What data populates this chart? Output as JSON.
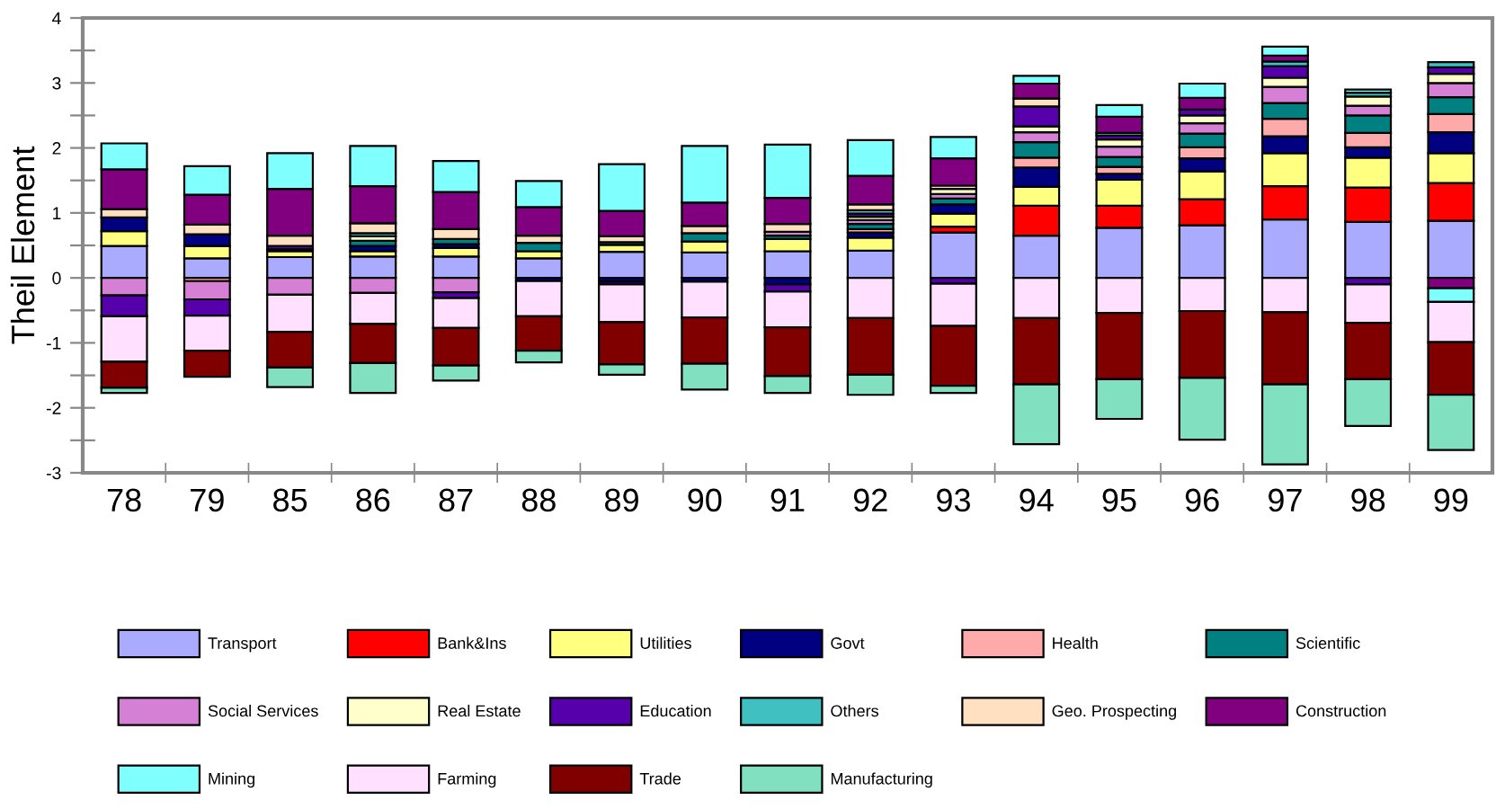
{
  "chart_data": {
    "type": "bar",
    "stacked": true,
    "ylabel": "Theil Element",
    "legend": "bottom",
    "grid": false,
    "categories": [
      "78",
      "79",
      "85",
      "86",
      "87",
      "88",
      "89",
      "90",
      "91",
      "92",
      "93",
      "94",
      "95",
      "96",
      "97",
      "98",
      "99"
    ],
    "ylim": [
      -3,
      4
    ],
    "yticks": [
      -3,
      {
        "value": -2.5,
        "label": null
      },
      -2,
      {
        "value": -1.5,
        "label": null
      },
      -1,
      {
        "value": -0.5,
        "label": null
      },
      0,
      {
        "value": 0.5,
        "label": null
      },
      1,
      {
        "value": 1.5,
        "label": null
      },
      2,
      {
        "value": 2.5,
        "label": null
      },
      3,
      {
        "value": 3.5,
        "label": null
      },
      4
    ],
    "series": [
      {
        "name": "Transport",
        "color": "#aaaaff",
        "values": [
          0.49,
          0.3,
          0.32,
          0.33,
          0.33,
          0.3,
          0.4,
          0.39,
          0.41,
          0.42,
          0.7,
          0.65,
          0.77,
          0.81,
          0.9,
          0.86,
          0.88
        ]
      },
      {
        "name": "Bank&Ins",
        "color": "#ff0000",
        "values": [
          0,
          0,
          0,
          0,
          0,
          0,
          0,
          0,
          0,
          0,
          0.09,
          0.46,
          0.34,
          0.4,
          0.51,
          0.53,
          0.58
        ]
      },
      {
        "name": "Utilities",
        "color": "#ffff80",
        "values": [
          0.23,
          0.19,
          0.09,
          0.08,
          0.13,
          0.11,
          0.11,
          0.17,
          0.19,
          0.2,
          0.2,
          0.29,
          0.4,
          0.43,
          0.51,
          0.46,
          0.46
        ]
      },
      {
        "name": "Govt",
        "color": "#000080",
        "values": [
          0.21,
          0.18,
          0.03,
          0.08,
          0.06,
          -0.05,
          -0.06,
          -0.06,
          -0.1,
          0.08,
          0.14,
          0.3,
          0.09,
          0.2,
          0.26,
          0.16,
          0.32
        ]
      },
      {
        "name": "Health",
        "color": "#ffaaaa",
        "values": [
          null,
          -0.05,
          0,
          0,
          0,
          0,
          0,
          0,
          0,
          0.05,
          0,
          0.15,
          0.11,
          0.17,
          0.27,
          0.22,
          0.28
        ]
      },
      {
        "name": "Scientific",
        "color": "#008080",
        "values": [
          0,
          null,
          null,
          0.08,
          0.08,
          0.13,
          0.04,
          0.13,
          0.05,
          0.08,
          0.09,
          0.24,
          0.15,
          0.21,
          0.24,
          0.27,
          0.26
        ]
      },
      {
        "name": "Social Services",
        "color": "#d580d5",
        "values": [
          -0.27,
          -0.28,
          -0.26,
          -0.23,
          -0.22,
          0,
          0,
          0,
          0.06,
          0.06,
          0.07,
          0.15,
          0.16,
          0.16,
          0.25,
          0.15,
          0.22
        ]
      },
      {
        "name": "Real Estate",
        "color": "#ffffcc",
        "values": [
          0,
          0,
          0,
          0.07,
          0,
          0,
          0,
          0,
          0,
          0.05,
          0.08,
          0.09,
          0.11,
          0.12,
          0.14,
          0.14,
          0.14
        ]
      },
      {
        "name": "Education",
        "color": "#5500aa",
        "values": [
          -0.32,
          -0.25,
          0.05,
          0,
          -0.09,
          0,
          -0.04,
          0,
          -0.11,
          0.05,
          -0.09,
          0.31,
          0.06,
          0.09,
          0.18,
          -0.1,
          0.1
        ]
      },
      {
        "name": "Others",
        "color": "#40c0c0",
        "values": [
          0,
          0,
          0,
          0.05,
          0,
          0,
          null,
          0,
          0,
          0.05,
          0,
          0,
          0.04,
          null,
          0.07,
          0.06,
          0.08
        ]
      },
      {
        "name": "Geo. Prospecting",
        "color": "#ffe0c0",
        "values": [
          0.13,
          0.15,
          0.16,
          0.15,
          0.15,
          0.11,
          0.09,
          0.11,
          0.12,
          0.09,
          0.05,
          0.12,
          0,
          0,
          0,
          0,
          0
        ]
      },
      {
        "name": "Construction",
        "color": "#800080",
        "values": [
          0.61,
          0.46,
          0.72,
          0.57,
          0.57,
          0.44,
          0.39,
          0.36,
          0.4,
          0.44,
          0.42,
          0.23,
          0.25,
          0.18,
          0.09,
          0,
          -0.16
        ]
      },
      {
        "name": "Mining",
        "color": "#80ffff",
        "values": [
          0.4,
          0.44,
          0.55,
          0.62,
          0.48,
          0.4,
          0.72,
          0.87,
          0.82,
          0.55,
          0.33,
          0.12,
          0.18,
          0.22,
          0.14,
          0.05,
          -0.21
        ]
      },
      {
        "name": "Farming",
        "color": "#ffe0ff",
        "values": [
          -0.7,
          -0.54,
          -0.57,
          -0.48,
          -0.46,
          -0.54,
          -0.58,
          -0.55,
          -0.55,
          -0.62,
          -0.65,
          -0.62,
          -0.54,
          -0.51,
          -0.53,
          -0.59,
          -0.62
        ]
      },
      {
        "name": "Trade",
        "color": "#800000",
        "values": [
          -0.4,
          -0.4,
          -0.55,
          -0.6,
          -0.58,
          -0.53,
          -0.65,
          -0.71,
          -0.75,
          -0.87,
          -0.92,
          -1.02,
          -1.02,
          -1.03,
          -1.11,
          -0.87,
          -0.81
        ]
      },
      {
        "name": "Manufacturing",
        "color": "#80e0c0",
        "values": [
          -0.08,
          0,
          -0.3,
          -0.46,
          -0.23,
          -0.18,
          -0.16,
          -0.4,
          -0.26,
          -0.31,
          -0.11,
          -0.92,
          -0.61,
          -0.95,
          -1.23,
          -0.72,
          -0.85
        ]
      }
    ]
  }
}
